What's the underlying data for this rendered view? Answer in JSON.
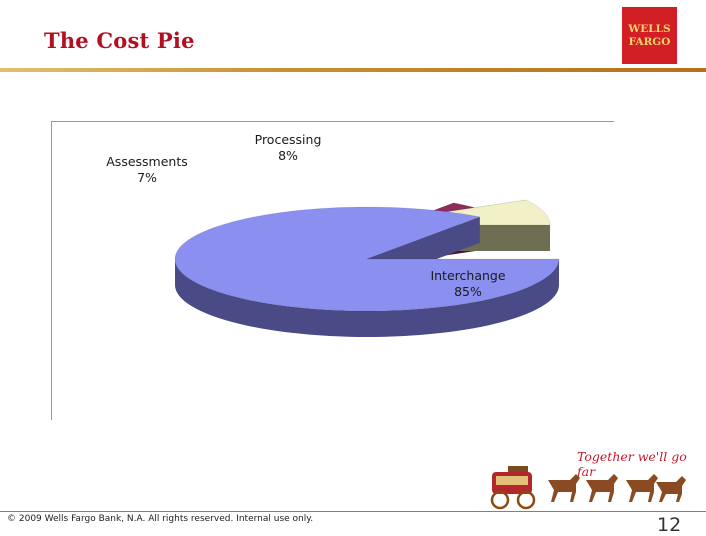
{
  "header": {
    "title": "The Cost Pie",
    "logo_line1": "WELLS",
    "logo_line2": "FARGO"
  },
  "colors": {
    "title": "#b01020",
    "logo_bg": "#d21f26",
    "logo_text": "#f3d36a",
    "interchange": "#8b8ff0",
    "assessments": "#8b2f5a",
    "processing": "#f1f0c6"
  },
  "chart_data": {
    "type": "pie",
    "style": "3d-exploded",
    "slices": [
      {
        "label": "Interchange",
        "value": 85,
        "display": "85%",
        "color": "#8b8ff0",
        "side": "#4a4a86"
      },
      {
        "label": "Assessments",
        "value": 7,
        "display": "7%",
        "color": "#8b2f5a",
        "side": "#4a1030"
      },
      {
        "label": "Processing",
        "value": 8,
        "display": "8%",
        "color": "#f1f0c6",
        "side": "#6e6e52"
      }
    ]
  },
  "footer": {
    "copyright": "© 2009 Wells Fargo Bank, N.A. All rights reserved.  Internal use only.",
    "page_number": "12",
    "tagline": "Together we'll go far"
  }
}
